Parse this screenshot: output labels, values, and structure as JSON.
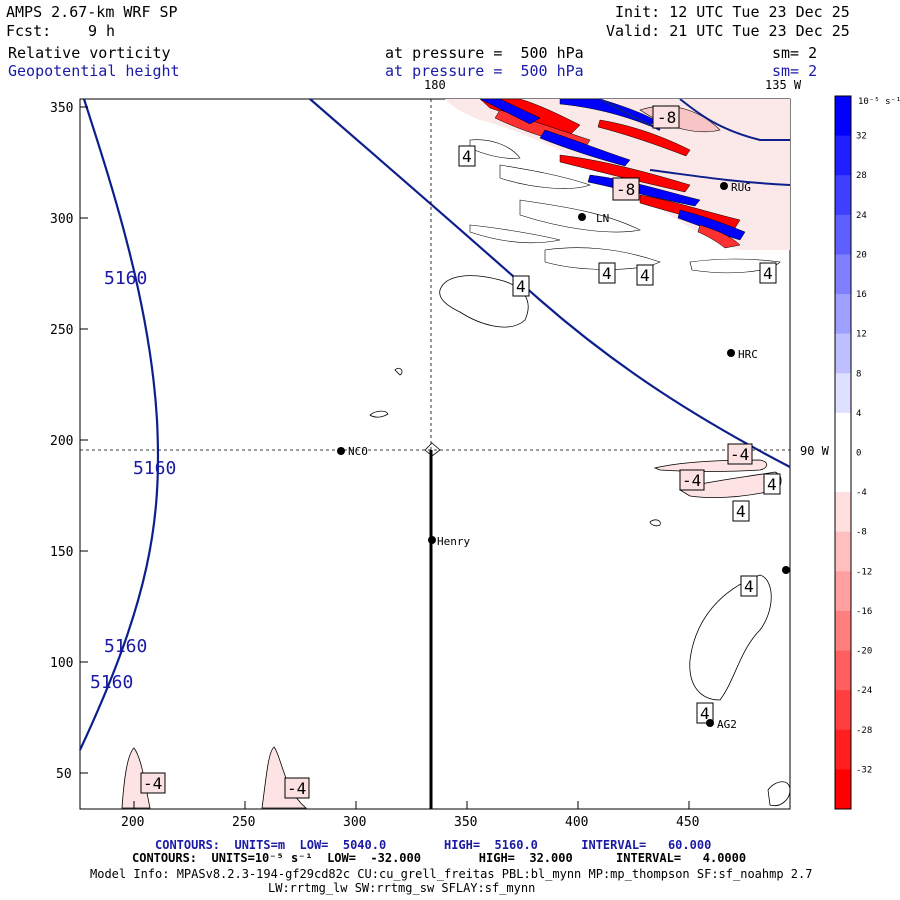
{
  "header": {
    "model": "AMPS 2.67-km WRF SP",
    "fcst_label": "Fcst:",
    "fcst_value": "9 h",
    "init": "Init: 12 UTC Tue 23 Dec 25",
    "valid": "Valid: 21 UTC Tue 23 Dec 25",
    "field1_name": "Relative vorticity",
    "field1_level": "at pressure =  500 hPa",
    "field1_sm": "sm= 2",
    "field2_name": "Geopotential height",
    "field2_level": "at pressure =  500 hPa",
    "field2_sm": "sm= 2"
  },
  "map": {
    "x_ticks": [
      "200",
      "250",
      "300",
      "350",
      "400",
      "450"
    ],
    "y_ticks": [
      "350",
      "300",
      "250",
      "200",
      "150",
      "100",
      "50"
    ],
    "lon_180": "180",
    "lon_135w": "135 W",
    "lon_90w": "90 W",
    "stations": [
      {
        "name": "NCO"
      },
      {
        "name": "Henry"
      },
      {
        "name": "HRC"
      },
      {
        "name": "AG2"
      },
      {
        "name": "RUG"
      },
      {
        "name": "LN"
      }
    ],
    "height_labels": [
      "5160",
      "5160",
      "5160",
      "5160"
    ],
    "vort_labels": [
      "-8",
      "4",
      "-8",
      "4",
      "4",
      "4",
      "4",
      "-4",
      "-4",
      "4",
      "4",
      "4",
      "4",
      "-4",
      "-4"
    ],
    "colors": {
      "height_contour": "#0d1f8c",
      "vort_positive": "#0000ff",
      "vort_negative": "#ff0000"
    }
  },
  "colorbar": {
    "unit": "10⁻⁵ s⁻¹",
    "labels": [
      "32",
      "28",
      "24",
      "20",
      "16",
      "12",
      "8",
      "4",
      "0",
      "-4",
      "-8",
      "-12",
      "-16",
      "-20",
      "-24",
      "-28",
      "-32"
    ],
    "colors": [
      "#0000ff",
      "#1f1fff",
      "#3f3fff",
      "#5f5fff",
      "#7f7fff",
      "#9f9fff",
      "#bfbfff",
      "#dfdfff",
      "#ffffff",
      "#ffffff",
      "#ffdfdf",
      "#ffbfbf",
      "#ff9f9f",
      "#ff7f7f",
      "#ff5f5f",
      "#ff3f3f",
      "#ff1f1f",
      "#ff0000"
    ]
  },
  "footer": {
    "line1": "CONTOURS:  UNITS=m  LOW=  5040.0        HIGH=  5160.0      INTERVAL=   60.000",
    "line2": "CONTOURS:  UNITS=10⁻⁵ s⁻¹  LOW=  -32.000        HIGH=  32.000      INTERVAL=   4.0000",
    "line3": "Model Info: MPASv8.2.3-194-gf29cd82c CU:cu_grell_freitas PBL:bl_mynn MP:mp_thompson SF:sf_noahmp 2.7",
    "line4": "LW:rrtmg_lw SW:rrtmg_sw SFLAY:sf_mynn"
  }
}
